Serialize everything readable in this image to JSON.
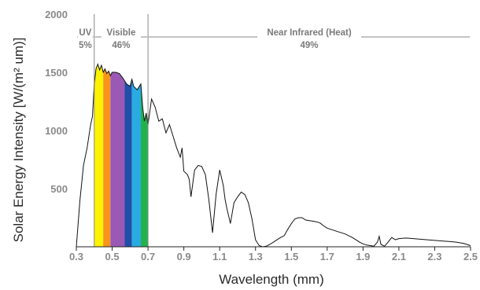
{
  "chart_data": {
    "type": "line",
    "title": "",
    "xlabel": "Wavelength (mm)",
    "ylabel": "Solar Energy Intensity [W/(m² um)]",
    "xlim": [
      0.3,
      2.5
    ],
    "ylim": [
      0,
      2000
    ],
    "x_ticks": [
      "0.3",
      "0.5",
      "0.7",
      "0.9",
      "1.1",
      "1.3",
      "1.5",
      "1.7",
      "1.9",
      "2.1",
      "2.3",
      "2.5"
    ],
    "y_ticks": [
      "500",
      "1000",
      "1500",
      "2000"
    ],
    "grid": false,
    "regions": [
      {
        "name": "UV",
        "percent": "5%",
        "x_start": 0.3,
        "x_end": 0.4
      },
      {
        "name": "Visible",
        "percent": "46%",
        "x_start": 0.4,
        "x_end": 0.7
      },
      {
        "name": "Near Infrared (Heat)",
        "percent": "49%",
        "x_start": 0.7,
        "x_end": 2.5
      }
    ],
    "visible_bands": [
      {
        "x_start": 0.4,
        "x_end": 0.45,
        "color": "#fff200"
      },
      {
        "x_start": 0.45,
        "x_end": 0.49,
        "color": "#f7941d"
      },
      {
        "x_start": 0.49,
        "x_end": 0.57,
        "color": "#9b59b6"
      },
      {
        "x_start": 0.57,
        "x_end": 0.61,
        "color": "#1f4fa8"
      },
      {
        "x_start": 0.61,
        "x_end": 0.66,
        "color": "#29abe2"
      },
      {
        "x_start": 0.66,
        "x_end": 0.7,
        "color": "#22b24c"
      }
    ],
    "series": [
      {
        "x": [
          0.3,
          0.32,
          0.34,
          0.36,
          0.38,
          0.39,
          0.4,
          0.41,
          0.42,
          0.43,
          0.44,
          0.45,
          0.46,
          0.47,
          0.48,
          0.49,
          0.5,
          0.52,
          0.54,
          0.56,
          0.58,
          0.6,
          0.61,
          0.62,
          0.64,
          0.66,
          0.67,
          0.68,
          0.69,
          0.7,
          0.72,
          0.74,
          0.76,
          0.78,
          0.8,
          0.82,
          0.84,
          0.86,
          0.88,
          0.89,
          0.9,
          0.92,
          0.93,
          0.94,
          0.96,
          0.98,
          1.0,
          1.02,
          1.04,
          1.06,
          1.08,
          1.1,
          1.12,
          1.13,
          1.14,
          1.16,
          1.18,
          1.2,
          1.22,
          1.24,
          1.26,
          1.28,
          1.3,
          1.32,
          1.34,
          1.36,
          1.38,
          1.4,
          1.42,
          1.44,
          1.46,
          1.48,
          1.5,
          1.52,
          1.54,
          1.56,
          1.58,
          1.6,
          1.62,
          1.64,
          1.66,
          1.68,
          1.7,
          1.72,
          1.74,
          1.76,
          1.78,
          1.8,
          1.82,
          1.84,
          1.86,
          1.88,
          1.9,
          1.92,
          1.94,
          1.96,
          1.98,
          1.99,
          2.0,
          2.02,
          2.04,
          2.06,
          2.08,
          2.1,
          2.14,
          2.18,
          2.22,
          2.26,
          2.3,
          2.34,
          2.38,
          2.42,
          2.46,
          2.5
        ],
        "y": [
          0,
          400,
          700,
          850,
          1050,
          1120,
          1400,
          1530,
          1570,
          1520,
          1560,
          1500,
          1530,
          1490,
          1510,
          1470,
          1500,
          1500,
          1490,
          1450,
          1400,
          1380,
          1440,
          1380,
          1350,
          1400,
          1200,
          1080,
          1150,
          1050,
          1270,
          1200,
          1080,
          1100,
          980,
          1050,
          950,
          850,
          770,
          850,
          650,
          620,
          580,
          430,
          660,
          700,
          690,
          620,
          400,
          120,
          450,
          660,
          530,
          410,
          330,
          200,
          380,
          430,
          470,
          450,
          380,
          240,
          60,
          10,
          0,
          5,
          20,
          40,
          60,
          80,
          95,
          150,
          200,
          240,
          250,
          250,
          230,
          225,
          220,
          215,
          205,
          180,
          160,
          150,
          140,
          130,
          120,
          110,
          95,
          80,
          60,
          40,
          25,
          15,
          10,
          5,
          40,
          90,
          20,
          5,
          40,
          80,
          60,
          70,
          75,
          70,
          65,
          60,
          55,
          50,
          45,
          40,
          30,
          10
        ]
      }
    ]
  }
}
